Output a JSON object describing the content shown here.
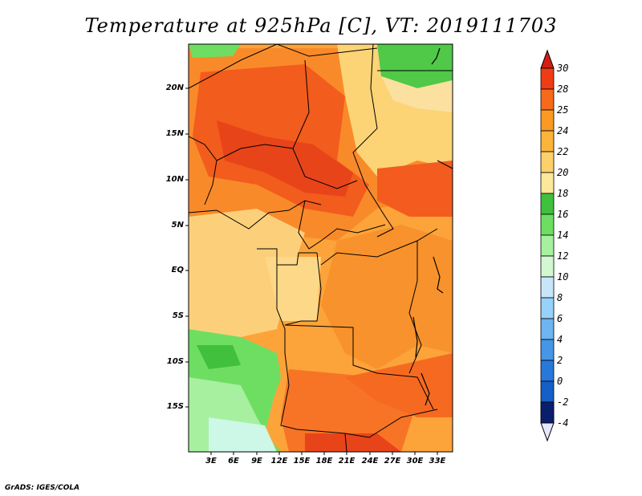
{
  "title": "Temperature at 925hPa [C], VT: 2019111703",
  "credit": "GrADS: IGES/COLA",
  "latitude_labels": [
    "20N",
    "15N",
    "10N",
    "5N",
    "EQ",
    "5S",
    "10S",
    "15S"
  ],
  "longitude_labels": [
    "3E",
    "6E",
    "9E",
    "12E",
    "15E",
    "18E",
    "21E",
    "24E",
    "27E",
    "30E",
    "33E"
  ],
  "colorbar": {
    "labels": [
      "30",
      "28",
      "25",
      "24",
      "22",
      "20",
      "18",
      "16",
      "14",
      "12",
      "10",
      "8",
      "6",
      "4",
      "2",
      "0",
      "-2",
      "-4"
    ],
    "colors": [
      "#f03c14",
      "#f76a1a",
      "#fa9a22",
      "#fbb43a",
      "#fcd06a",
      "#fce79a",
      "#40c03c",
      "#6ede62",
      "#a6f0a0",
      "#d2f8d2",
      "#c8e6fa",
      "#96d2fa",
      "#6eb4f0",
      "#4696e6",
      "#2878dc",
      "#1460c8",
      "#0a3ca0",
      "#0a1e6e"
    ],
    "top_arrow_color": "#d21e14",
    "bottom_arrow_color": "#e6e6ff"
  }
}
